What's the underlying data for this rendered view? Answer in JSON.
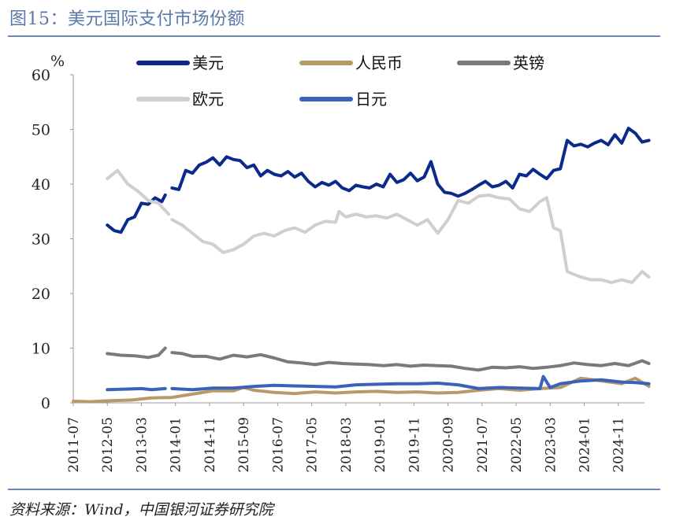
{
  "header": {
    "title": "图15：美元国际支付市场份额",
    "source": "资料来源：Wind，中国银河证券研究院"
  },
  "chart_data": {
    "type": "line",
    "unit_label": "%",
    "ylim": [
      0,
      60
    ],
    "yticks": [
      0,
      10,
      20,
      30,
      40,
      50,
      60
    ],
    "x_range": [
      "2011-07",
      "2025-06"
    ],
    "xtick_labels": [
      "2011-07",
      "2012-05",
      "2013-03",
      "2014-01",
      "2014-11",
      "2015-09",
      "2016-07",
      "2017-05",
      "2018-03",
      "2019-01",
      "2019-11",
      "2020-09",
      "2021-07",
      "2022-05",
      "2023-03",
      "2024-01",
      "2024-11"
    ],
    "legend_position": "top",
    "series": [
      {
        "name": "美元",
        "color": "#0c2a8a",
        "width": 4,
        "points": [
          [
            "2012-05",
            32.5
          ],
          [
            "2012-07",
            31.5
          ],
          [
            "2012-09",
            31.2
          ],
          [
            "2012-11",
            33.5
          ],
          [
            "2013-01",
            34.0
          ],
          [
            "2013-03",
            36.5
          ],
          [
            "2013-05",
            36.3
          ],
          [
            "2013-07",
            37.5
          ],
          [
            "2013-09",
            36.8
          ],
          [
            "2013-10",
            38.0
          ],
          null,
          [
            "2013-12",
            39.3
          ],
          [
            "2014-02",
            39.0
          ],
          [
            "2014-04",
            42.5
          ],
          [
            "2014-06",
            42.0
          ],
          [
            "2014-08",
            43.5
          ],
          [
            "2014-10",
            44.0
          ],
          [
            "2014-12",
            44.8
          ],
          [
            "2015-02",
            43.5
          ],
          [
            "2015-04",
            45.0
          ],
          [
            "2015-06",
            44.5
          ],
          [
            "2015-08",
            44.3
          ],
          [
            "2015-10",
            43.0
          ],
          [
            "2015-12",
            43.5
          ],
          [
            "2016-02",
            41.5
          ],
          [
            "2016-04",
            42.5
          ],
          [
            "2016-06",
            41.8
          ],
          [
            "2016-08",
            41.5
          ],
          [
            "2016-10",
            42.3
          ],
          [
            "2016-12",
            41.3
          ],
          [
            "2017-02",
            42.0
          ],
          [
            "2017-04",
            40.5
          ],
          [
            "2017-06",
            39.5
          ],
          [
            "2017-08",
            40.3
          ],
          [
            "2017-10",
            39.8
          ],
          [
            "2017-12",
            40.5
          ],
          [
            "2018-02",
            39.3
          ],
          [
            "2018-04",
            38.8
          ],
          [
            "2018-06",
            39.8
          ],
          [
            "2018-08",
            39.5
          ],
          [
            "2018-10",
            39.3
          ],
          [
            "2018-12",
            40.0
          ],
          [
            "2019-02",
            39.5
          ],
          [
            "2019-04",
            41.8
          ],
          [
            "2019-06",
            40.3
          ],
          [
            "2019-08",
            40.8
          ],
          [
            "2019-10",
            42.0
          ],
          [
            "2019-12",
            40.6
          ],
          [
            "2020-02",
            41.3
          ],
          [
            "2020-04",
            44.1
          ],
          [
            "2020-06",
            40.0
          ],
          [
            "2020-08",
            38.5
          ],
          [
            "2020-10",
            38.3
          ],
          [
            "2020-12",
            37.8
          ],
          [
            "2021-02",
            38.3
          ],
          [
            "2021-04",
            39.0
          ],
          [
            "2021-06",
            39.8
          ],
          [
            "2021-08",
            40.5
          ],
          [
            "2021-10",
            39.5
          ],
          [
            "2021-12",
            39.8
          ],
          [
            "2022-02",
            40.5
          ],
          [
            "2022-04",
            39.3
          ],
          [
            "2022-06",
            41.8
          ],
          [
            "2022-08",
            41.5
          ],
          [
            "2022-10",
            42.7
          ],
          [
            "2022-12",
            41.8
          ],
          [
            "2023-02",
            41.0
          ],
          [
            "2023-04",
            42.5
          ],
          [
            "2023-06",
            42.8
          ],
          [
            "2023-08",
            48.0
          ],
          [
            "2023-10",
            47.0
          ],
          [
            "2023-12",
            47.3
          ],
          [
            "2024-02",
            46.8
          ],
          [
            "2024-04",
            47.5
          ],
          [
            "2024-06",
            48.0
          ],
          [
            "2024-08",
            47.2
          ],
          [
            "2024-10",
            49.0
          ],
          [
            "2024-12",
            47.5
          ],
          [
            "2025-02",
            50.2
          ],
          [
            "2025-04",
            49.3
          ],
          [
            "2025-06",
            47.7
          ],
          [
            "2025-08",
            48.0
          ]
        ]
      },
      {
        "name": "人民币",
        "color": "#b89a6a",
        "width": 4,
        "points": [
          [
            "2011-07",
            0.3
          ],
          [
            "2011-12",
            0.2
          ],
          [
            "2012-06",
            0.4
          ],
          [
            "2012-12",
            0.5
          ],
          [
            "2013-06",
            0.9
          ],
          [
            "2013-12",
            1.0
          ],
          [
            "2014-06",
            1.6
          ],
          [
            "2014-12",
            2.2
          ],
          [
            "2015-06",
            2.2
          ],
          [
            "2015-09",
            2.8
          ],
          [
            "2015-12",
            2.3
          ],
          [
            "2016-06",
            1.9
          ],
          [
            "2016-12",
            1.7
          ],
          [
            "2017-06",
            2.0
          ],
          [
            "2017-12",
            1.8
          ],
          [
            "2018-06",
            2.0
          ],
          [
            "2018-12",
            2.1
          ],
          [
            "2019-06",
            1.9
          ],
          [
            "2019-12",
            2.0
          ],
          [
            "2020-06",
            1.8
          ],
          [
            "2020-12",
            1.9
          ],
          [
            "2021-06",
            2.3
          ],
          [
            "2021-12",
            2.6
          ],
          [
            "2022-06",
            2.3
          ],
          [
            "2022-12",
            2.6
          ],
          [
            "2023-06",
            2.8
          ],
          [
            "2023-12",
            4.5
          ],
          [
            "2024-06",
            4.0
          ],
          [
            "2024-12",
            3.5
          ],
          [
            "2025-04",
            4.5
          ],
          [
            "2025-08",
            3.0
          ]
        ]
      },
      {
        "name": "英镑",
        "color": "#7a7a7a",
        "width": 4,
        "points": [
          [
            "2012-05",
            9.0
          ],
          [
            "2012-09",
            8.7
          ],
          [
            "2013-01",
            8.6
          ],
          [
            "2013-05",
            8.3
          ],
          [
            "2013-08",
            8.7
          ],
          [
            "2013-10",
            10.0
          ],
          null,
          [
            "2013-12",
            9.2
          ],
          [
            "2014-03",
            9.0
          ],
          [
            "2014-06",
            8.5
          ],
          [
            "2014-10",
            8.5
          ],
          [
            "2015-02",
            8.0
          ],
          [
            "2015-06",
            8.7
          ],
          [
            "2015-10",
            8.4
          ],
          [
            "2016-02",
            8.8
          ],
          [
            "2016-06",
            8.2
          ],
          [
            "2016-10",
            7.5
          ],
          [
            "2017-02",
            7.3
          ],
          [
            "2017-06",
            7.0
          ],
          [
            "2017-10",
            7.4
          ],
          [
            "2018-02",
            7.2
          ],
          [
            "2018-06",
            7.1
          ],
          [
            "2018-10",
            7.0
          ],
          [
            "2019-02",
            6.8
          ],
          [
            "2019-06",
            7.0
          ],
          [
            "2019-10",
            6.7
          ],
          [
            "2020-02",
            6.9
          ],
          [
            "2020-06",
            6.8
          ],
          [
            "2020-10",
            6.7
          ],
          [
            "2021-02",
            6.3
          ],
          [
            "2021-06",
            6.0
          ],
          [
            "2021-10",
            6.5
          ],
          [
            "2022-02",
            6.4
          ],
          [
            "2022-06",
            6.6
          ],
          [
            "2022-10",
            6.3
          ],
          [
            "2023-02",
            6.5
          ],
          [
            "2023-06",
            6.8
          ],
          [
            "2023-10",
            7.3
          ],
          [
            "2024-02",
            7.0
          ],
          [
            "2024-06",
            6.8
          ],
          [
            "2024-10",
            7.2
          ],
          [
            "2025-02",
            6.8
          ],
          [
            "2025-06",
            7.7
          ],
          [
            "2025-08",
            7.2
          ]
        ]
      },
      {
        "name": "欧元",
        "color": "#cfcfcf",
        "width": 4,
        "points": [
          [
            "2012-05",
            41.0
          ],
          [
            "2012-08",
            42.5
          ],
          [
            "2012-11",
            40.0
          ],
          [
            "2013-02",
            38.7
          ],
          [
            "2013-05",
            37.0
          ],
          [
            "2013-08",
            36.5
          ],
          [
            "2013-11",
            34.5
          ],
          null,
          [
            "2013-12",
            33.5
          ],
          [
            "2014-03",
            32.5
          ],
          [
            "2014-06",
            31.0
          ],
          [
            "2014-09",
            29.5
          ],
          [
            "2014-12",
            29.0
          ],
          [
            "2015-03",
            27.5
          ],
          [
            "2015-06",
            28.0
          ],
          [
            "2015-09",
            29.0
          ],
          [
            "2015-12",
            30.5
          ],
          [
            "2016-03",
            31.0
          ],
          [
            "2016-06",
            30.5
          ],
          [
            "2016-09",
            31.5
          ],
          [
            "2016-12",
            32.0
          ],
          [
            "2017-03",
            31.2
          ],
          [
            "2017-06",
            32.5
          ],
          [
            "2017-09",
            33.2
          ],
          [
            "2017-12",
            33.0
          ],
          [
            "2018-01",
            35.0
          ],
          [
            "2018-03",
            34.0
          ],
          [
            "2018-06",
            34.5
          ],
          [
            "2018-09",
            34.0
          ],
          [
            "2018-12",
            34.2
          ],
          [
            "2019-03",
            33.8
          ],
          [
            "2019-06",
            34.5
          ],
          [
            "2019-09",
            33.5
          ],
          [
            "2019-12",
            32.5
          ],
          [
            "2020-03",
            33.5
          ],
          [
            "2020-06",
            31.0
          ],
          [
            "2020-09",
            33.5
          ],
          [
            "2020-12",
            37.0
          ],
          [
            "2021-03",
            36.5
          ],
          [
            "2021-06",
            37.8
          ],
          [
            "2021-09",
            38.0
          ],
          [
            "2021-12",
            37.5
          ],
          [
            "2022-03",
            37.3
          ],
          [
            "2022-06",
            35.5
          ],
          [
            "2022-09",
            35.0
          ],
          [
            "2022-12",
            36.8
          ],
          [
            "2023-02",
            37.5
          ],
          [
            "2023-04",
            32.0
          ],
          [
            "2023-06",
            31.5
          ],
          [
            "2023-08",
            24.0
          ],
          [
            "2023-10",
            23.5
          ],
          [
            "2023-12",
            23.0
          ],
          [
            "2024-03",
            22.5
          ],
          [
            "2024-06",
            22.5
          ],
          [
            "2024-09",
            22.0
          ],
          [
            "2024-12",
            22.5
          ],
          [
            "2025-03",
            22.0
          ],
          [
            "2025-06",
            24.0
          ],
          [
            "2025-08",
            23.0
          ]
        ]
      },
      {
        "name": "日元",
        "color": "#3a62b8",
        "width": 4,
        "points": [
          [
            "2012-05",
            2.4
          ],
          [
            "2012-10",
            2.5
          ],
          [
            "2013-03",
            2.6
          ],
          [
            "2013-06",
            2.4
          ],
          [
            "2013-10",
            2.6
          ],
          null,
          [
            "2013-12",
            2.6
          ],
          [
            "2014-06",
            2.4
          ],
          [
            "2014-12",
            2.7
          ],
          [
            "2015-06",
            2.7
          ],
          [
            "2015-12",
            3.0
          ],
          [
            "2016-06",
            3.2
          ],
          [
            "2016-12",
            3.1
          ],
          [
            "2017-06",
            3.0
          ],
          [
            "2017-12",
            2.9
          ],
          [
            "2018-06",
            3.3
          ],
          [
            "2018-12",
            3.4
          ],
          [
            "2019-06",
            3.5
          ],
          [
            "2019-12",
            3.5
          ],
          [
            "2020-06",
            3.6
          ],
          [
            "2020-12",
            3.3
          ],
          [
            "2021-06",
            2.6
          ],
          [
            "2021-12",
            2.8
          ],
          [
            "2022-06",
            2.7
          ],
          [
            "2022-12",
            2.6
          ],
          [
            "2023-01",
            4.8
          ],
          [
            "2023-03",
            2.8
          ],
          [
            "2023-06",
            3.5
          ],
          [
            "2023-12",
            4.0
          ],
          [
            "2024-06",
            4.2
          ],
          [
            "2024-12",
            3.8
          ],
          [
            "2025-04",
            3.7
          ],
          [
            "2025-08",
            3.5
          ]
        ]
      }
    ],
    "legend_rows": [
      [
        "美元",
        "人民币",
        "英镑"
      ],
      [
        "欧元",
        "日元"
      ]
    ]
  }
}
